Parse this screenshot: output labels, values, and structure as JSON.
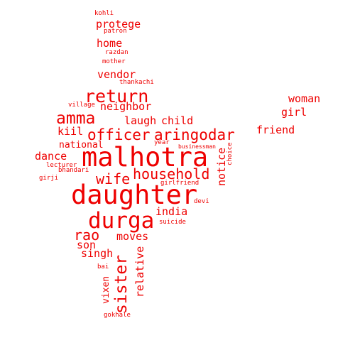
{
  "colors": {
    "word": "#ee0000",
    "background": "#ffffff"
  },
  "words": [
    {
      "text": "malhotra"
    },
    {
      "text": "daughter"
    },
    {
      "text": "durga"
    },
    {
      "text": "return"
    },
    {
      "text": "amma"
    },
    {
      "text": "officer"
    },
    {
      "text": "aringodar"
    },
    {
      "text": "household"
    },
    {
      "text": "wife"
    },
    {
      "text": "sister"
    },
    {
      "text": "rao"
    },
    {
      "text": "neighbor"
    },
    {
      "text": "laugh"
    },
    {
      "text": "child"
    },
    {
      "text": "kiil"
    },
    {
      "text": "notice"
    },
    {
      "text": "woman"
    },
    {
      "text": "girl"
    },
    {
      "text": "friend"
    },
    {
      "text": "dance"
    },
    {
      "text": "national"
    },
    {
      "text": "protege"
    },
    {
      "text": "home"
    },
    {
      "text": "vendor"
    },
    {
      "text": "india"
    },
    {
      "text": "moves"
    },
    {
      "text": "son"
    },
    {
      "text": "singh"
    },
    {
      "text": "relative"
    },
    {
      "text": "vixen"
    },
    {
      "text": "kohli"
    },
    {
      "text": "patron"
    },
    {
      "text": "razdan"
    },
    {
      "text": "mother"
    },
    {
      "text": "thankachi"
    },
    {
      "text": "village"
    },
    {
      "text": "year"
    },
    {
      "text": "businessman"
    },
    {
      "text": "choice"
    },
    {
      "text": "lecturer"
    },
    {
      "text": "bhandari"
    },
    {
      "text": "girji"
    },
    {
      "text": "girlfriend"
    },
    {
      "text": "devi"
    },
    {
      "text": "suicide"
    },
    {
      "text": "bai"
    },
    {
      "text": "gokhale"
    }
  ]
}
